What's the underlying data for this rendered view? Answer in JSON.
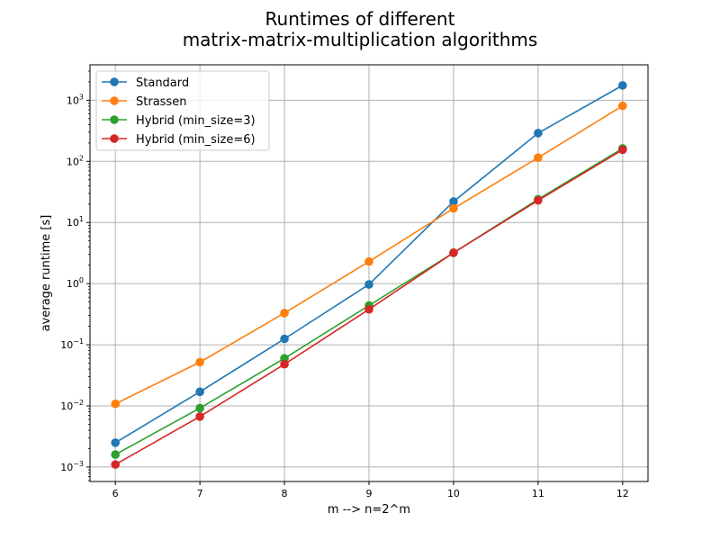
{
  "chart_data": {
    "type": "line",
    "title_lines": [
      "Runtimes of different",
      "matrix-matrix-multiplication algorithms"
    ],
    "xlabel": "m --> n=2^m",
    "ylabel": "average runtime [s]",
    "yscale": "log",
    "x": [
      6,
      7,
      8,
      9,
      10,
      11,
      12
    ],
    "xlim": [
      5.7,
      12.3
    ],
    "ylim": [
      0.00058,
      3800
    ],
    "x_ticks": [
      "6",
      "7",
      "8",
      "9",
      "10",
      "11",
      "12"
    ],
    "y_ticks": [
      {
        "value": 0.001,
        "base": "10",
        "exp": "−3"
      },
      {
        "value": 0.01,
        "base": "10",
        "exp": "−2"
      },
      {
        "value": 0.1,
        "base": "10",
        "exp": "−1"
      },
      {
        "value": 1,
        "base": "10",
        "exp": "0"
      },
      {
        "value": 10,
        "base": "10",
        "exp": "1"
      },
      {
        "value": 100,
        "base": "10",
        "exp": "2"
      },
      {
        "value": 1000,
        "base": "10",
        "exp": "3"
      }
    ],
    "grid": true,
    "legend_position": "top-left",
    "series": [
      {
        "name": "Standard",
        "color": "#1f77b4",
        "values": [
          0.0025,
          0.017,
          0.125,
          0.97,
          22,
          290,
          1750
        ]
      },
      {
        "name": "Strassen",
        "color": "#ff7f0e",
        "values": [
          0.0108,
          0.052,
          0.33,
          2.3,
          17,
          115,
          810
        ]
      },
      {
        "name": "Hybrid (min_size=3)",
        "color": "#2ca02c",
        "values": [
          0.0016,
          0.0092,
          0.06,
          0.44,
          3.2,
          24,
          163
        ]
      },
      {
        "name": "Hybrid (min_size=6)",
        "color": "#d62728",
        "values": [
          0.0011,
          0.0067,
          0.048,
          0.38,
          3.2,
          23,
          155
        ]
      }
    ]
  }
}
